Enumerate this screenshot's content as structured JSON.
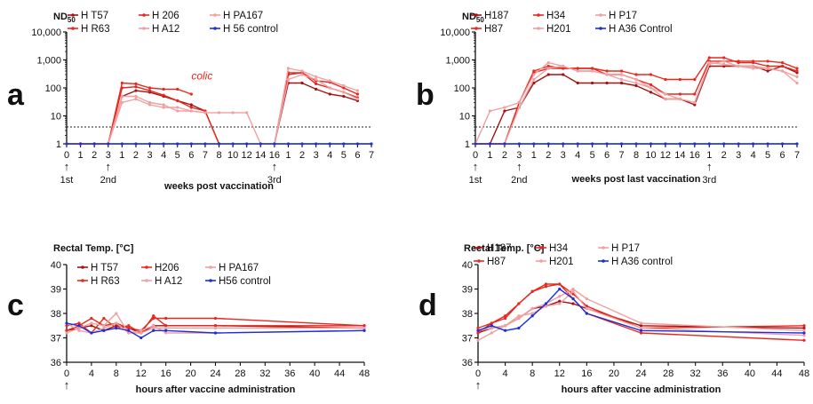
{
  "figure": {
    "colors": {
      "dark_red": "#a01414",
      "red": "#e8281e",
      "light_red": "#f0a0a0",
      "blue": "#1a2fe0",
      "axis": "#111111"
    },
    "arrow_glyph": "↑"
  },
  "chart_data": [
    {
      "panel_label": "a",
      "type": "line",
      "ylabel": "ND",
      "ylabel_sub": "50",
      "yscale": "log",
      "ylim": [
        1,
        10000
      ],
      "ytick_labels": [
        "1",
        "10",
        "100",
        "1,000",
        "10,000"
      ],
      "xlabel": "weeks post vaccination",
      "x_tick_labels": [
        "0",
        "1",
        "2",
        "3",
        "1",
        "2",
        "3",
        "4",
        "5",
        "6",
        "7",
        "8",
        "10",
        "12",
        "14",
        "16",
        "1",
        "2",
        "3",
        "4",
        "5",
        "6",
        "7"
      ],
      "vaccination_markers": [
        {
          "tick_index": 0,
          "label": "1st"
        },
        {
          "tick_index": 3,
          "label": "2nd"
        },
        {
          "tick_index": 15,
          "label": "3rd"
        }
      ],
      "threshold": 4,
      "annotation": {
        "text": "colic",
        "x_index": 9,
        "y": 200
      },
      "legend": {
        "columns": 3,
        "entries": [
          {
            "label": "H T57",
            "color_key": "dark_red"
          },
          {
            "label": "H R63",
            "color_key": "red"
          },
          {
            "label": "H 206",
            "color_key": "red"
          },
          {
            "label": "H A12",
            "color_key": "light_red"
          },
          {
            "label": "H PA167",
            "color_key": "light_red"
          },
          {
            "label": "H 56 control",
            "color_key": "blue"
          }
        ]
      },
      "series": [
        {
          "name": "H T57",
          "color_key": "dark_red",
          "values": [
            1,
            1,
            1,
            1,
            50,
            80,
            70,
            50,
            35,
            25,
            15,
            1,
            null,
            null,
            null,
            1,
            150,
            150,
            90,
            60,
            50,
            35,
            null
          ]
        },
        {
          "name": "H R63",
          "color_key": "red",
          "values": [
            1,
            1,
            1,
            1,
            100,
            110,
            80,
            55,
            35,
            20,
            15,
            1,
            null,
            null,
            null,
            1,
            350,
            350,
            140,
            100,
            70,
            45,
            null
          ]
        },
        {
          "name": "H 206",
          "color_key": "red",
          "values": [
            1,
            1,
            1,
            1,
            150,
            140,
            100,
            90,
            90,
            60,
            null,
            null,
            null,
            null,
            null,
            1,
            300,
            350,
            180,
            160,
            100,
            60,
            null
          ]
        },
        {
          "name": "H A12",
          "color_key": "light_red",
          "values": [
            1,
            1,
            1,
            1,
            30,
            40,
            25,
            20,
            20,
            15,
            13,
            13,
            13,
            13,
            1,
            1,
            200,
            300,
            200,
            100,
            70,
            40,
            null
          ]
        },
        {
          "name": "H PA167",
          "color_key": "light_red",
          "values": [
            1,
            1,
            1,
            1,
            50,
            50,
            30,
            25,
            15,
            15,
            null,
            null,
            null,
            null,
            null,
            1,
            500,
            400,
            250,
            180,
            120,
            80,
            null
          ]
        },
        {
          "name": "H 56 control",
          "color_key": "blue",
          "values": [
            1,
            1,
            1,
            1,
            1,
            1,
            1,
            1,
            1,
            1,
            1,
            1,
            1,
            1,
            1,
            1,
            1,
            1,
            1,
            1,
            1,
            1,
            1
          ]
        }
      ]
    },
    {
      "panel_label": "b",
      "type": "line",
      "ylabel": "ND",
      "ylabel_sub": "50",
      "yscale": "log",
      "ylim": [
        1,
        10000
      ],
      "ytick_labels": [
        "1",
        "10",
        "100",
        "1,000",
        "10,000"
      ],
      "xlabel": "weeks post last vaccination",
      "x_tick_labels": [
        "0",
        "1",
        "2",
        "3",
        "1",
        "2",
        "3",
        "4",
        "5",
        "6",
        "7",
        "8",
        "10",
        "12",
        "14",
        "16",
        "1",
        "2",
        "3",
        "4",
        "5",
        "6",
        "7"
      ],
      "vaccination_markers": [
        {
          "tick_index": 0,
          "label": "1st"
        },
        {
          "tick_index": 3,
          "label": "2nd"
        },
        {
          "tick_index": 16,
          "label": "3rd"
        }
      ],
      "threshold": 4,
      "legend": {
        "columns": 3,
        "entries": [
          {
            "label": "H187",
            "color_key": "dark_red"
          },
          {
            "label": "H87",
            "color_key": "red"
          },
          {
            "label": "H34",
            "color_key": "red"
          },
          {
            "label": "H201",
            "color_key": "light_red"
          },
          {
            "label": "H P17",
            "color_key": "light_red"
          },
          {
            "label": "H A36 Control",
            "color_key": "blue"
          }
        ]
      },
      "series": [
        {
          "name": "H187",
          "color_key": "dark_red",
          "values": [
            1,
            1,
            15,
            20,
            150,
            300,
            300,
            150,
            150,
            150,
            150,
            120,
            70,
            40,
            40,
            25,
            600,
            600,
            600,
            600,
            400,
            600,
            350
          ]
        },
        {
          "name": "H87",
          "color_key": "red",
          "values": [
            1,
            1,
            1,
            30,
            400,
            600,
            500,
            500,
            500,
            300,
            300,
            200,
            130,
            60,
            60,
            60,
            900,
            900,
            900,
            900,
            900,
            800,
            500
          ]
        },
        {
          "name": "H34",
          "color_key": "red",
          "values": [
            1,
            1,
            1,
            30,
            350,
            500,
            500,
            500,
            500,
            400,
            400,
            300,
            300,
            200,
            200,
            200,
            1200,
            1200,
            800,
            800,
            600,
            600,
            400
          ]
        },
        {
          "name": "H201",
          "color_key": "light_red",
          "values": [
            1,
            1,
            1,
            20,
            200,
            500,
            600,
            400,
            400,
            300,
            200,
            150,
            100,
            60,
            40,
            30,
            800,
            700,
            600,
            500,
            500,
            400,
            250
          ]
        },
        {
          "name": "H P17",
          "color_key": "light_red",
          "values": [
            1,
            15,
            20,
            30,
            300,
            800,
            600,
            400,
            400,
            300,
            300,
            200,
            100,
            40,
            40,
            30,
            700,
            900,
            600,
            600,
            500,
            400,
            150
          ]
        },
        {
          "name": "H A36 Control",
          "color_key": "blue",
          "values": [
            1,
            1,
            1,
            1,
            1,
            1,
            1,
            1,
            1,
            1,
            1,
            1,
            1,
            1,
            1,
            1,
            1,
            1,
            1,
            1,
            1,
            1,
            1
          ]
        }
      ]
    },
    {
      "panel_label": "c",
      "type": "line",
      "ylabel": "Rectal Temp. [°C]",
      "ylim": [
        36,
        40
      ],
      "ytick_labels": [
        "36",
        "37",
        "38",
        "39",
        "40"
      ],
      "xlabel": "hours after vaccine administration",
      "x": [
        0,
        2,
        4,
        6,
        8,
        10,
        12,
        14,
        16,
        24,
        48
      ],
      "x_tick_values": [
        0,
        4,
        8,
        12,
        16,
        20,
        24,
        28,
        32,
        36,
        40,
        44,
        48
      ],
      "vaccination_markers": [
        {
          "x": 0,
          "label": ""
        }
      ],
      "legend": {
        "columns": 3,
        "entries": [
          {
            "label": "H T57",
            "color_key": "dark_red"
          },
          {
            "label": "H R63",
            "color_key": "red"
          },
          {
            "label": "H206",
            "color_key": "red"
          },
          {
            "label": "H A12",
            "color_key": "light_red"
          },
          {
            "label": "H PA167",
            "color_key": "light_red"
          },
          {
            "label": "H56 control",
            "color_key": "blue"
          }
        ]
      },
      "series": [
        {
          "name": "H T57",
          "color_key": "dark_red",
          "values": [
            37.3,
            37.4,
            37.5,
            37.3,
            37.5,
            37.4,
            37.2,
            37.5,
            37.5,
            37.5,
            37.4
          ]
        },
        {
          "name": "H R63",
          "color_key": "red",
          "values": [
            37.3,
            37.5,
            37.8,
            37.5,
            37.6,
            37.4,
            37.3,
            37.8,
            37.8,
            37.8,
            37.5
          ]
        },
        {
          "name": "H206",
          "color_key": "red",
          "values": [
            37.5,
            37.6,
            37.2,
            37.8,
            37.4,
            37.5,
            37.2,
            37.9,
            37.5,
            37.5,
            37.5
          ]
        },
        {
          "name": "H A12",
          "color_key": "light_red",
          "values": [
            37.2,
            37.4,
            37.6,
            37.5,
            38.0,
            37.2,
            37.3,
            37.5,
            37.2,
            37.2,
            37.3
          ]
        },
        {
          "name": "H PA167",
          "color_key": "light_red",
          "values": [
            37.6,
            37.3,
            37.2,
            37.4,
            37.6,
            37.2,
            37.2,
            37.4,
            37.4,
            37.4,
            37.4
          ]
        },
        {
          "name": "H56 control",
          "color_key": "blue",
          "values": [
            37.6,
            37.5,
            37.2,
            37.3,
            37.4,
            37.3,
            37.0,
            37.3,
            37.3,
            37.2,
            37.3
          ]
        }
      ]
    },
    {
      "panel_label": "d",
      "type": "line",
      "ylabel": "Rectal Temp. [°C]",
      "ylim": [
        36,
        40
      ],
      "ytick_labels": [
        "36",
        "37",
        "38",
        "39",
        "40"
      ],
      "xlabel": "hours after vaccine administration",
      "x": [
        0,
        2,
        4,
        6,
        8,
        10,
        12,
        14,
        16,
        24,
        48
      ],
      "x_tick_values": [
        0,
        4,
        8,
        12,
        16,
        20,
        24,
        28,
        32,
        36,
        40,
        44,
        48
      ],
      "vaccination_markers": [
        {
          "x": 0,
          "label": ""
        }
      ],
      "legend": {
        "columns": 3,
        "entries": [
          {
            "label": "H187",
            "color_key": "dark_red"
          },
          {
            "label": "H87",
            "color_key": "red"
          },
          {
            "label": "H34",
            "color_key": "red"
          },
          {
            "label": "H201",
            "color_key": "light_red"
          },
          {
            "label": "H P17",
            "color_key": "light_red"
          },
          {
            "label": "H A36 control",
            "color_key": "blue"
          }
        ]
      },
      "series": [
        {
          "name": "H187",
          "color_key": "dark_red",
          "values": [
            37.2,
            37.4,
            37.5,
            37.8,
            38.2,
            38.3,
            38.5,
            38.4,
            38.2,
            37.5,
            37.4
          ]
        },
        {
          "name": "H87",
          "color_key": "red",
          "values": [
            37.4,
            37.6,
            37.9,
            38.4,
            38.9,
            39.1,
            39.2,
            38.8,
            38.3,
            37.4,
            37.5
          ]
        },
        {
          "name": "H34",
          "color_key": "red",
          "values": [
            37.2,
            37.6,
            37.8,
            38.4,
            38.9,
            39.2,
            39.2,
            38.6,
            38.0,
            37.2,
            36.9
          ]
        },
        {
          "name": "H201",
          "color_key": "light_red",
          "values": [
            36.9,
            37.2,
            37.5,
            37.9,
            38.0,
            38.3,
            38.4,
            38.9,
            38.2,
            37.4,
            37.1
          ]
        },
        {
          "name": "H P17",
          "color_key": "light_red",
          "values": [
            37.3,
            37.4,
            37.5,
            37.8,
            38.2,
            38.4,
            38.7,
            39.0,
            38.6,
            37.6,
            37.3
          ]
        },
        {
          "name": "H A36 control",
          "color_key": "blue",
          "values": [
            37.3,
            37.5,
            37.3,
            37.4,
            37.9,
            38.4,
            39.0,
            38.6,
            38.0,
            37.3,
            37.2
          ]
        }
      ]
    }
  ]
}
